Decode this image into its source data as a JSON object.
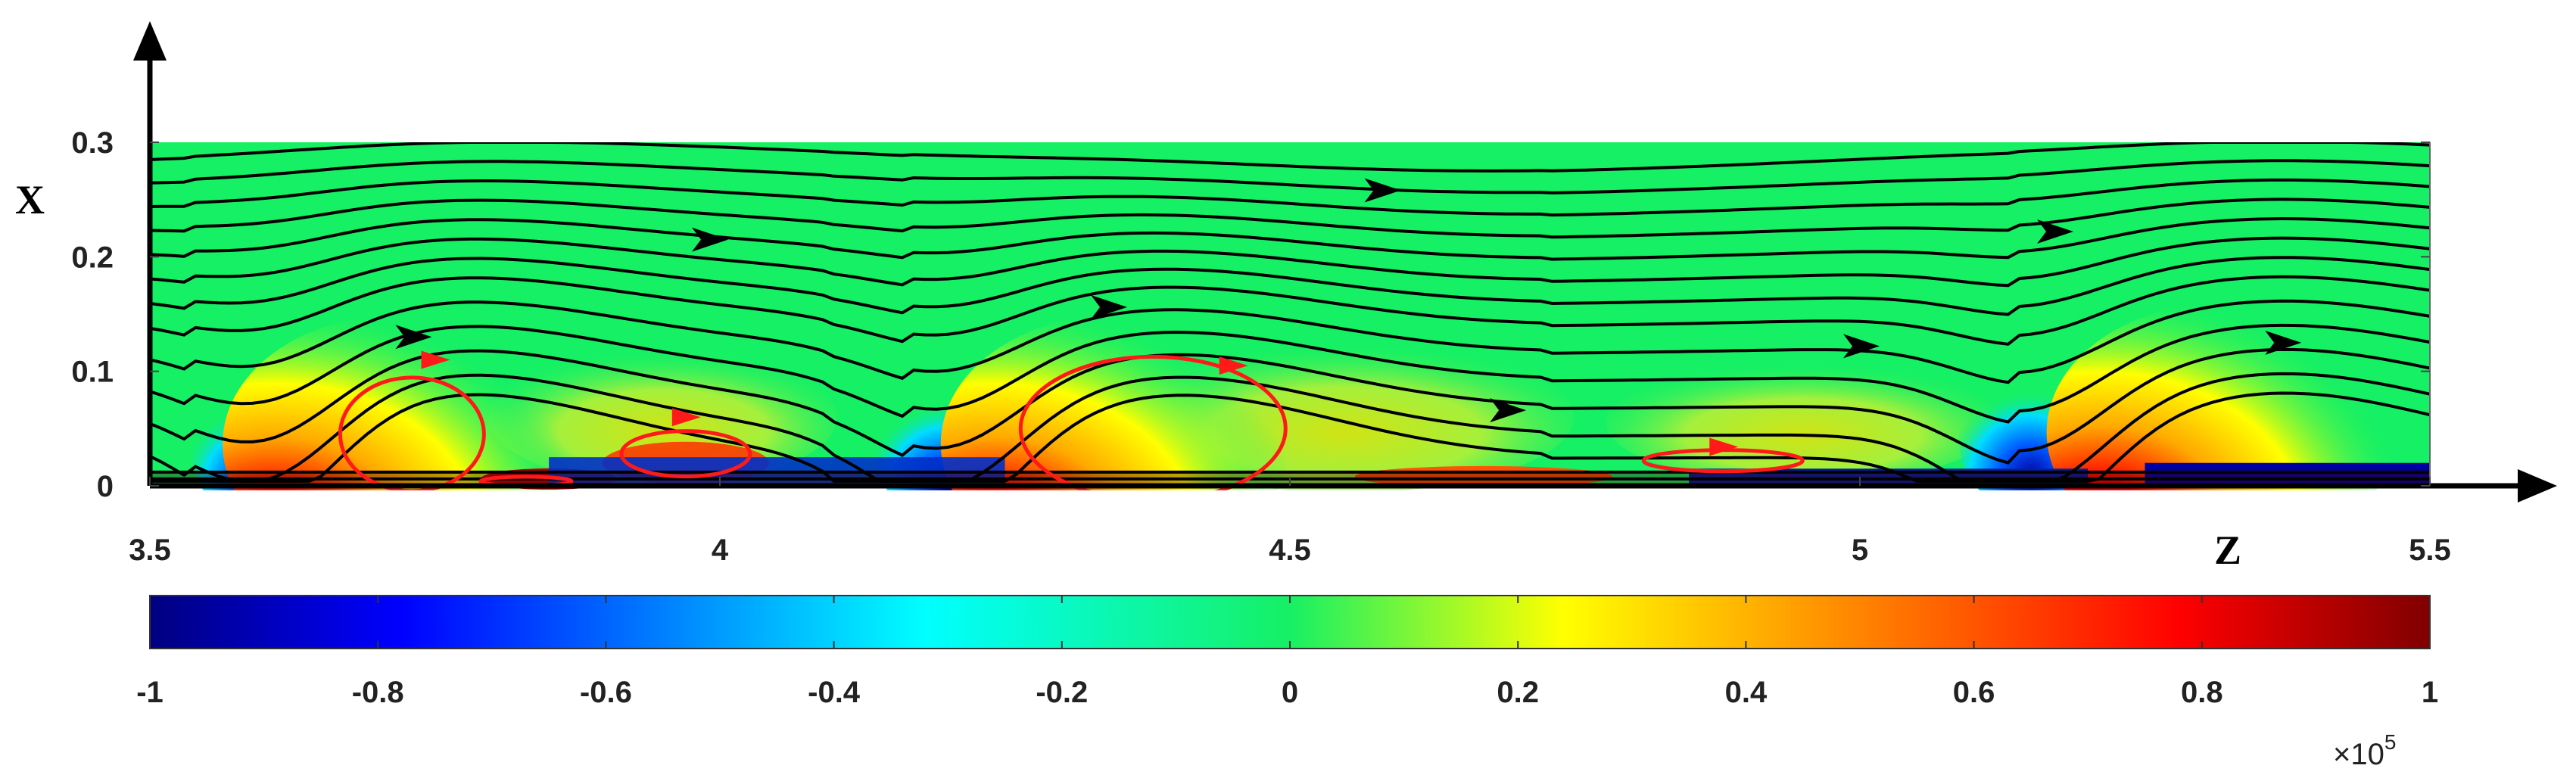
{
  "chart_data": {
    "type": "heatmap",
    "xlabel": "Z",
    "ylabel": "X",
    "xlim": [
      3.5,
      5.5
    ],
    "ylim": [
      0,
      0.3
    ],
    "x_ticks": [
      "3.5",
      "4",
      "4.5",
      "5",
      "5.5"
    ],
    "y_ticks": [
      "0",
      "0.1",
      "0.2",
      "0.3"
    ],
    "colorbar": {
      "range": [
        -1,
        1
      ],
      "ticks": [
        "-1",
        "-0.8",
        "-0.6",
        "-0.4",
        "-0.2",
        "0",
        "0.2",
        "0.4",
        "0.6",
        "0.8",
        "1"
      ],
      "multiplier_base": "×10",
      "multiplier_exp": "5",
      "colormap": "jet"
    },
    "colors": {
      "background_field": "#16f064",
      "streamline": "#000000",
      "recirculation": "#ff1a1a"
    },
    "features": {
      "bubbles": [
        {
          "z": 3.67,
          "x": 0.03
        },
        {
          "z": 4.3,
          "x": 0.03
        },
        {
          "z": 5.27,
          "x": 0.04
        }
      ],
      "dips": [
        {
          "z": 3.6,
          "x": 0.03
        },
        {
          "z": 4.2,
          "x": 0.03
        },
        {
          "z": 5.15,
          "x": 0.04
        }
      ],
      "streamline_arrows": [
        {
          "z": 3.73,
          "x": 0.13
        },
        {
          "z": 3.99,
          "x": 0.215
        },
        {
          "z": 4.34,
          "x": 0.156
        },
        {
          "z": 4.58,
          "x": 0.258
        },
        {
          "z": 4.69,
          "x": 0.066
        },
        {
          "z": 5.0,
          "x": 0.122
        },
        {
          "z": 5.17,
          "x": 0.222
        },
        {
          "z": 5.37,
          "x": 0.125
        }
      ]
    }
  }
}
